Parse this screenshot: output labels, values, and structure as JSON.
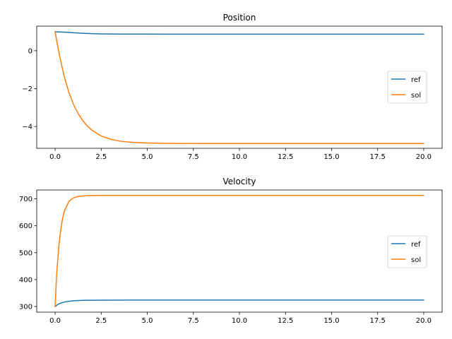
{
  "chart_data": [
    {
      "type": "line",
      "title": "Position",
      "xlabel": "",
      "ylabel": "",
      "xlim": [
        -1.0,
        21.0
      ],
      "ylim": [
        -5.15,
        1.3
      ],
      "xticks": [
        0.0,
        2.5,
        5.0,
        7.5,
        10.0,
        12.5,
        15.0,
        17.5,
        20.0
      ],
      "xtick_labels": [
        "0.0",
        "2.5",
        "5.0",
        "7.5",
        "10.0",
        "12.5",
        "15.0",
        "17.5",
        "20.0"
      ],
      "yticks": [
        0,
        -2,
        -4
      ],
      "ytick_labels": [
        "0",
        "−2",
        "−4"
      ],
      "grid": false,
      "legend_position": "center-right",
      "series": [
        {
          "name": "ref",
          "color": "#1f77b4",
          "x": [
            0,
            0.25,
            0.5,
            0.75,
            1,
            1.25,
            1.5,
            1.75,
            2,
            2.5,
            3,
            3.5,
            4,
            5,
            6,
            7,
            8,
            10,
            12.5,
            15,
            17.5,
            20
          ],
          "y": [
            1.0,
            0.994,
            0.982,
            0.967,
            0.952,
            0.937,
            0.924,
            0.913,
            0.904,
            0.892,
            0.885,
            0.882,
            0.88,
            0.879,
            0.878,
            0.878,
            0.878,
            0.878,
            0.878,
            0.878,
            0.878,
            0.878
          ]
        },
        {
          "name": "sol",
          "color": "#ff7f0e",
          "x": [
            0,
            0.1,
            0.25,
            0.5,
            0.75,
            1,
            1.25,
            1.5,
            1.75,
            2,
            2.5,
            3,
            3.5,
            4,
            4.5,
            5,
            6,
            7,
            8,
            10,
            12.5,
            15,
            17.5,
            20
          ],
          "y": [
            1.0,
            0.45,
            -0.32,
            -1.39,
            -2.21,
            -2.84,
            -3.32,
            -3.69,
            -3.98,
            -4.2,
            -4.5,
            -4.67,
            -4.77,
            -4.82,
            -4.85,
            -4.87,
            -4.89,
            -4.895,
            -4.9,
            -4.9,
            -4.9,
            -4.9,
            -4.9,
            -4.9
          ]
        }
      ]
    },
    {
      "type": "line",
      "title": "Velocity",
      "xlabel": "",
      "ylabel": "",
      "xlim": [
        -1.0,
        21.0
      ],
      "ylim": [
        279,
        733
      ],
      "xticks": [
        0.0,
        2.5,
        5.0,
        7.5,
        10.0,
        12.5,
        15.0,
        17.5,
        20.0
      ],
      "xtick_labels": [
        "0.0",
        "2.5",
        "5.0",
        "7.5",
        "10.0",
        "12.5",
        "15.0",
        "17.5",
        "20.0"
      ],
      "yticks": [
        300,
        400,
        500,
        600,
        700
      ],
      "ytick_labels": [
        "300",
        "400",
        "500",
        "600",
        "700"
      ],
      "grid": false,
      "legend_position": "center-right",
      "series": [
        {
          "name": "ref",
          "color": "#1f77b4",
          "x": [
            0,
            0.1,
            0.2,
            0.3,
            0.5,
            0.75,
            1,
            1.5,
            2,
            2.5,
            3,
            4,
            5,
            7.5,
            10,
            12.5,
            15,
            17.5,
            20
          ],
          "y": [
            300,
            305.5,
            309.5,
            312.5,
            316.5,
            319.5,
            321.2,
            322.8,
            323.4,
            323.6,
            323.7,
            323.8,
            323.8,
            323.8,
            323.8,
            323.8,
            323.8,
            323.8,
            323.8
          ]
        },
        {
          "name": "sol",
          "color": "#ff7f0e",
          "x": [
            0,
            0.05,
            0.1,
            0.2,
            0.3,
            0.4,
            0.5,
            0.75,
            1,
            1.25,
            1.5,
            1.75,
            2,
            2.5,
            3,
            4,
            5,
            7.5,
            10,
            12.5,
            15,
            17.5,
            20
          ],
          "y": [
            300,
            375,
            437,
            523,
            584,
            626,
            655,
            691,
            704,
            709,
            711,
            712,
            712.5,
            713,
            713,
            713,
            713,
            713,
            713,
            713,
            713,
            713,
            713
          ]
        }
      ]
    }
  ]
}
